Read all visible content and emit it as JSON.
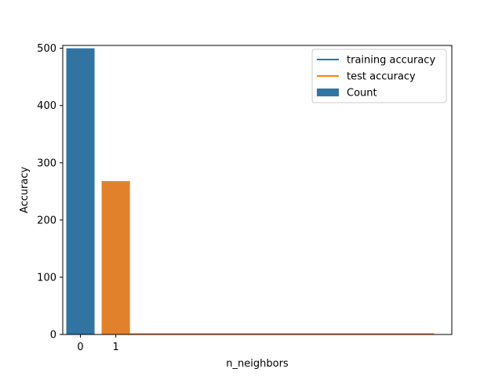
{
  "chart_data": {
    "type": "bar",
    "xlabel": "n_neighbors",
    "ylabel": "Accuracy",
    "ylim": [
      0,
      500
    ],
    "xlim": [
      -0.5,
      10.5
    ],
    "yticks": [
      0,
      100,
      200,
      300,
      400,
      500
    ],
    "xticks": [
      "0",
      "1"
    ],
    "bars": {
      "name": "Count",
      "categories": [
        0,
        1
      ],
      "values": [
        500,
        268
      ],
      "colors": [
        "#3274a1",
        "#e1812c"
      ]
    },
    "series": [
      {
        "name": "training accuracy",
        "type": "line",
        "color": "#1f77b4",
        "x": [
          1,
          2,
          3,
          4,
          5,
          6,
          7,
          8,
          9,
          10
        ],
        "y": [
          1.0,
          0.98,
          0.97,
          0.96,
          0.96,
          0.95,
          0.95,
          0.95,
          0.94,
          0.94
        ]
      },
      {
        "name": "test accuracy",
        "type": "line",
        "color": "#ff7f0e",
        "x": [
          1,
          2,
          3,
          4,
          5,
          6,
          7,
          8,
          9,
          10
        ],
        "y": [
          0.9,
          0.88,
          0.91,
          0.92,
          0.93,
          0.93,
          0.93,
          0.92,
          0.93,
          0.93
        ]
      }
    ],
    "legend": {
      "placement": "top-right",
      "entries": [
        "training accuracy",
        "test accuracy",
        "Count"
      ]
    },
    "grid": false
  }
}
